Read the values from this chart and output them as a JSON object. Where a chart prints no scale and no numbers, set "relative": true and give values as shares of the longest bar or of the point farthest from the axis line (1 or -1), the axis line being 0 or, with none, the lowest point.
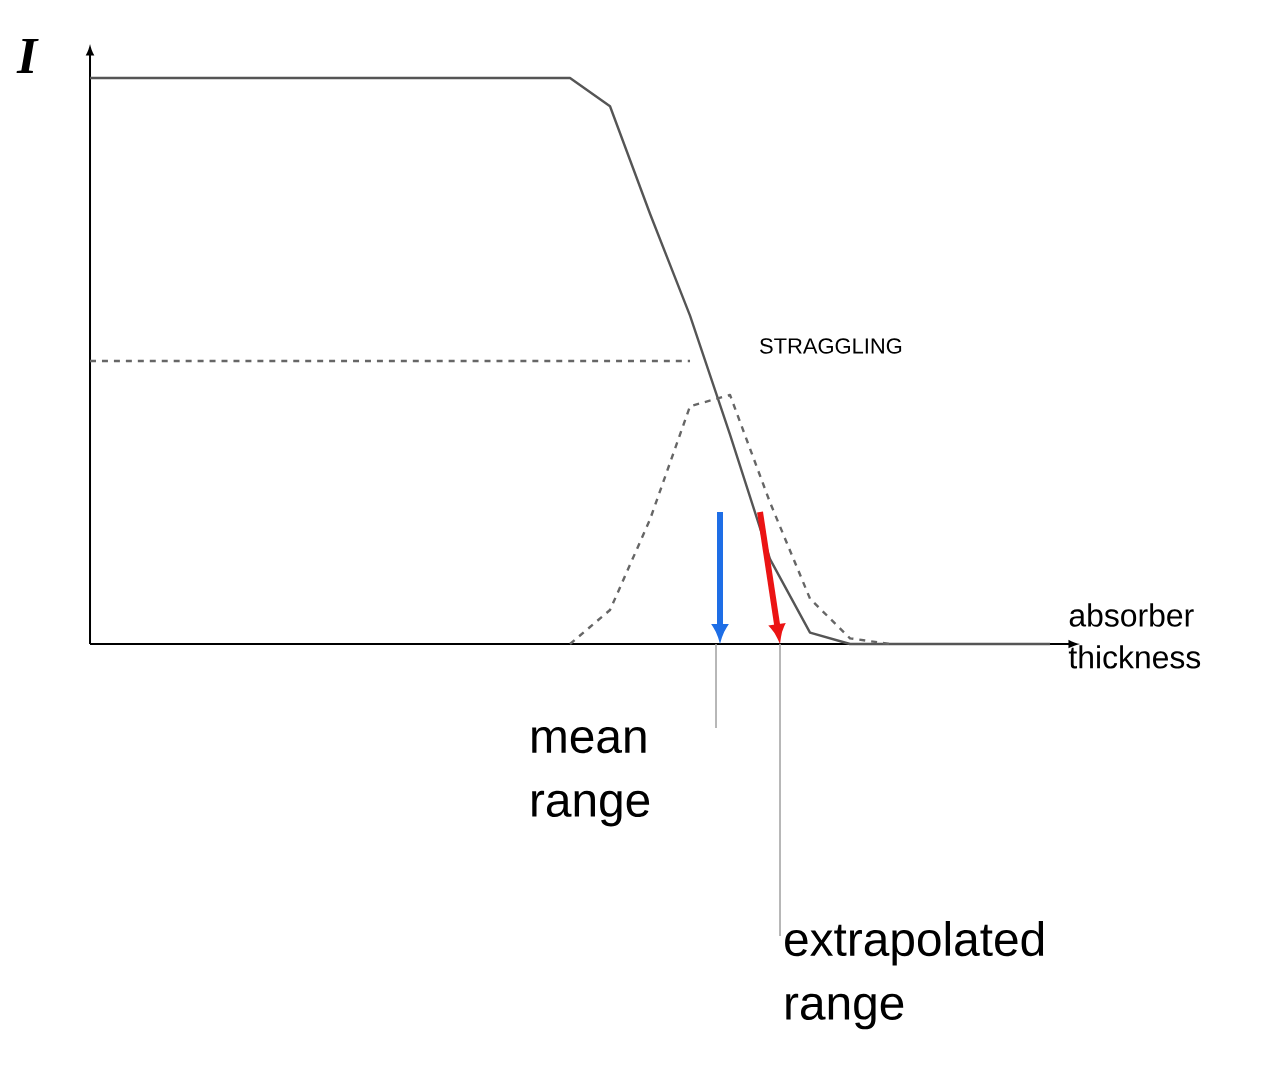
{
  "chart_data": {
    "type": "line",
    "relative": true,
    "ylabel": "I",
    "xlabel": "absorber thickness",
    "marker": "none",
    "categories": [
      null,
      null,
      null,
      null,
      null,
      null,
      null,
      null,
      null,
      null,
      null,
      null,
      null,
      null,
      null,
      null,
      null,
      null,
      null,
      null,
      null,
      null,
      null,
      null,
      null
    ],
    "series": [
      {
        "color": "#555555",
        "line_style": "solid",
        "values": [
          1,
          1,
          1,
          1,
          1,
          1,
          1,
          1,
          1,
          1,
          1,
          1,
          1,
          0.95,
          0.76,
          0.58,
          0.37,
          0.15,
          0.02,
          0,
          0,
          0,
          0,
          0,
          0
        ]
      },
      {
        "color": "#666666",
        "line_style": "dashed",
        "values": [
          null,
          null,
          null,
          null,
          null,
          null,
          null,
          null,
          null,
          null,
          null,
          null,
          0,
          0.06,
          0.22,
          0.42,
          0.44,
          0.25,
          0.08,
          0.01,
          0,
          null,
          null,
          null,
          null
        ]
      },
      {
        "color": "#666666",
        "line_style": "dashed",
        "values": [
          0.5,
          0.5,
          0.5,
          0.5,
          0.5,
          0.5,
          0.5,
          0.5,
          0.5,
          0.5,
          0.5,
          0.5,
          0.5,
          0.5,
          0.5,
          0.5,
          null,
          null,
          null,
          null,
          null,
          null,
          null,
          null,
          null
        ]
      }
    ],
    "annotations": [
      "STRAGGLING",
      "mean range",
      "extrapolated range"
    ]
  }
}
